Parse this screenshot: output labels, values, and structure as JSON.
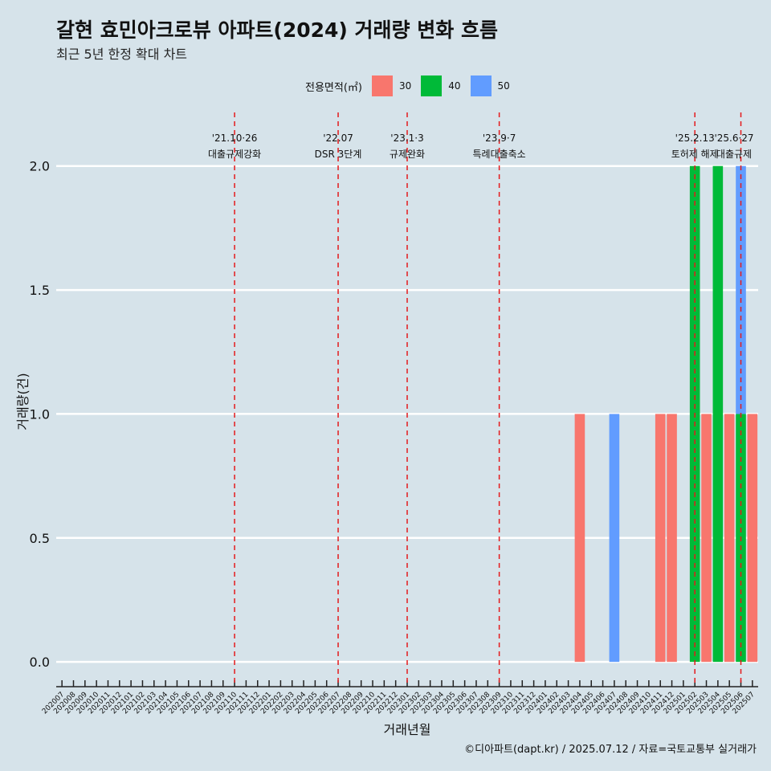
{
  "header": {
    "title": "갈현 효민아크로뷰 아파트(2024) 거래량 변화 흐름",
    "subtitle": "최근 5년 한정 확대 차트"
  },
  "legend": {
    "title": "전용면적(㎡)",
    "items": [
      {
        "label": "30",
        "color": "#f8766d"
      },
      {
        "label": "40",
        "color": "#00ba38"
      },
      {
        "label": "50",
        "color": "#619cff"
      }
    ]
  },
  "caption": "©디아파트(dapt.kr) / 2025.07.12 / 자료=국토교통부 실거래가",
  "chart_data": {
    "type": "bar",
    "title": "갈현 효민아크로뷰 아파트(2024) 거래량 변화 흐름",
    "xlabel": "거래년월",
    "ylabel": "거래량(건)",
    "ylim": [
      -0.1,
      2.2
    ],
    "yticks": [
      0.0,
      0.5,
      1.0,
      1.5,
      2.0
    ],
    "ytick_labels": [
      "0.0",
      "0.5",
      "1.0",
      "1.5",
      "2.0"
    ],
    "categories": [
      "202007",
      "202008",
      "202009",
      "202010",
      "202011",
      "202012",
      "202101",
      "202102",
      "202103",
      "202104",
      "202105",
      "202106",
      "202107",
      "202108",
      "202109",
      "202110",
      "202111",
      "202112",
      "202201",
      "202202",
      "202203",
      "202204",
      "202205",
      "202206",
      "202207",
      "202208",
      "202209",
      "202210",
      "202211",
      "202212",
      "202301",
      "202302",
      "202303",
      "202304",
      "202305",
      "202306",
      "202307",
      "202308",
      "202309",
      "202310",
      "202311",
      "202312",
      "202401",
      "202402",
      "202403",
      "202404",
      "202405",
      "202406",
      "202407",
      "202408",
      "202409",
      "202410",
      "202411",
      "202412",
      "202501",
      "202502",
      "202503",
      "202504",
      "202505",
      "202506",
      "202507"
    ],
    "series": [
      {
        "name": "30",
        "color": "#f8766d",
        "points": [
          {
            "month": "202404",
            "value": 1
          },
          {
            "month": "202411",
            "value": 1
          },
          {
            "month": "202412",
            "value": 1
          },
          {
            "month": "202503",
            "value": 1
          },
          {
            "month": "202505",
            "value": 1
          },
          {
            "month": "202507",
            "value": 1
          }
        ]
      },
      {
        "name": "40",
        "color": "#00ba38",
        "points": [
          {
            "month": "202502",
            "value": 2
          },
          {
            "month": "202504",
            "value": 2
          },
          {
            "month": "202506",
            "value": 1
          }
        ]
      },
      {
        "name": "50",
        "color": "#619cff",
        "points": [
          {
            "month": "202407",
            "value": 1
          },
          {
            "month": "202506",
            "value": 1
          }
        ]
      }
    ],
    "events": [
      {
        "month": "202110",
        "label_top": "'21.10·26",
        "label_bottom": "대출규제강화"
      },
      {
        "month": "202207",
        "label_top": "'22.07",
        "label_bottom": "DSR 3단계"
      },
      {
        "month": "202301",
        "label_top": "'23.1·3",
        "label_bottom": "규제완화"
      },
      {
        "month": "202309",
        "label_top": "'23.9·7",
        "label_bottom": "특례대출축소"
      },
      {
        "month": "202502",
        "label_top": "'25.2.13",
        "label_bottom": "토허제 해제"
      },
      {
        "month": "202506",
        "label_top": "'25.6·27",
        "label_bottom": "대출규제"
      }
    ]
  }
}
